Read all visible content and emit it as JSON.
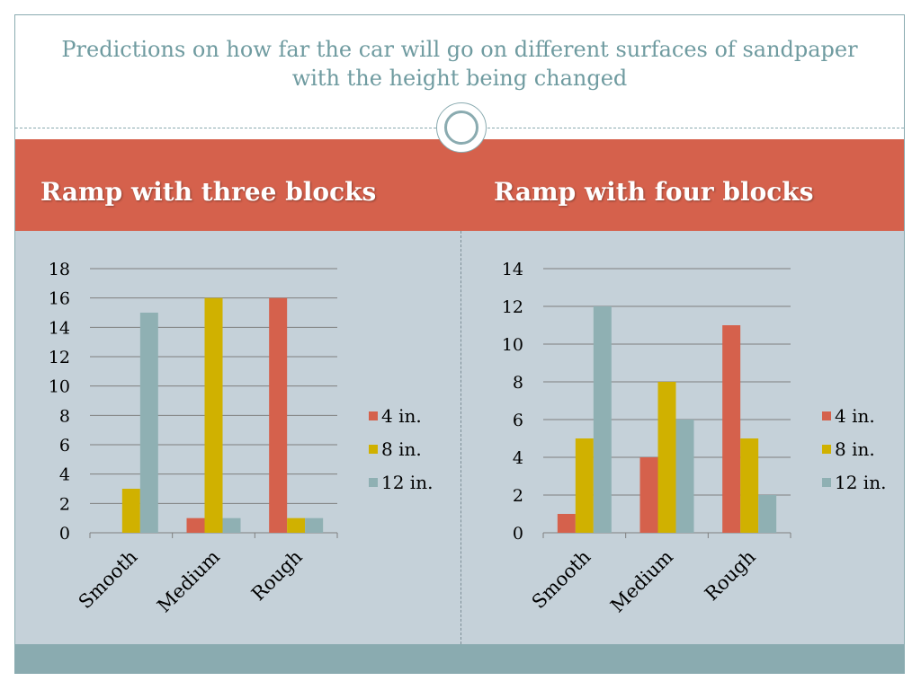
{
  "slide": {
    "title": "Predictions on how far the car will go on different surfaces of sandpaper with the height being changed",
    "left_heading": "Ramp with three blocks",
    "right_heading": "Ramp with four blocks"
  },
  "colors": {
    "title": "#6f9ba0",
    "header_band": "#d5614c",
    "body": "#c5d1d9",
    "footer": "#8aabb0"
  },
  "chart_data": [
    {
      "type": "bar",
      "categories": [
        "Smooth",
        "Medium",
        "Rough"
      ],
      "series": [
        {
          "name": "4 in.",
          "color": "#d5614c",
          "values": [
            0,
            1,
            16
          ]
        },
        {
          "name": "8 in.",
          "color": "#d0b100",
          "values": [
            3,
            16,
            1
          ]
        },
        {
          "name": "12 in.",
          "color": "#8fb0b3",
          "values": [
            15,
            1,
            1
          ]
        }
      ],
      "ylim": [
        0,
        18
      ],
      "yticks": [
        0,
        2,
        4,
        6,
        8,
        10,
        12,
        14,
        16,
        18
      ],
      "grid": true,
      "legend": "right"
    },
    {
      "type": "bar",
      "categories": [
        "Smooth",
        "Medium",
        "Rough"
      ],
      "series": [
        {
          "name": "4 in.",
          "color": "#d5614c",
          "values": [
            1,
            4,
            11
          ]
        },
        {
          "name": "8 in.",
          "color": "#d0b100",
          "values": [
            5,
            8,
            5
          ]
        },
        {
          "name": "12 in.",
          "color": "#8fb0b3",
          "values": [
            12,
            6,
            2
          ]
        }
      ],
      "ylim": [
        0,
        14
      ],
      "yticks": [
        0,
        2,
        4,
        6,
        8,
        10,
        12,
        14
      ],
      "grid": true,
      "legend": "right"
    }
  ]
}
